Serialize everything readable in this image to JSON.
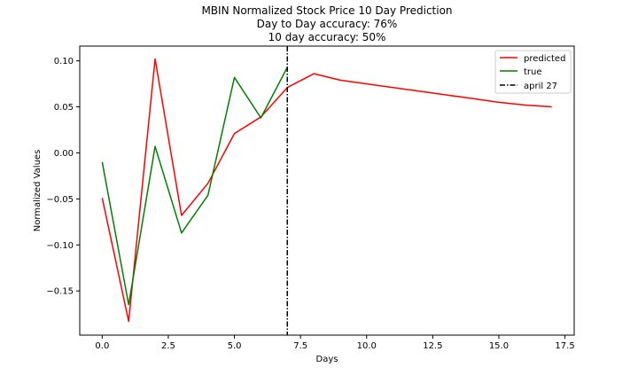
{
  "chart_data": {
    "type": "line",
    "title": "MBIN Normalized Stock Price 10 Day Prediction",
    "subtitle_lines": [
      "Day to Day accuracy: 76%",
      "10 day accuracy: 50%"
    ],
    "xlabel": "Days",
    "ylabel": "Normalized Values",
    "xlim": [
      -0.85,
      17.85
    ],
    "ylim": [
      -0.198,
      0.116
    ],
    "xticks": [
      0,
      2.5,
      5,
      7.5,
      10,
      12.5,
      15,
      17.5
    ],
    "xtick_labels": [
      "0.0",
      "2.5",
      "5.0",
      "7.5",
      "10.0",
      "12.5",
      "15.0",
      "17.5"
    ],
    "yticks": [
      0.1,
      0.05,
      0.0,
      -0.05,
      -0.1,
      -0.15
    ],
    "ytick_labels": [
      "0.10",
      "0.05",
      "0.00",
      "−0.05",
      "−0.10",
      "−0.15"
    ],
    "grid": false,
    "legend_position": "top-right",
    "series": [
      {
        "name": "predicted",
        "color": "#ff0000",
        "style": "solid",
        "x": [
          0,
          1,
          2,
          3,
          4,
          5,
          6,
          7,
          8,
          9,
          10,
          11,
          12,
          13,
          14,
          15,
          16,
          17
        ],
        "y": [
          -0.049,
          -0.183,
          0.102,
          -0.068,
          -0.033,
          0.021,
          0.039,
          0.071,
          0.086,
          0.079,
          0.075,
          0.071,
          0.067,
          0.063,
          0.059,
          0.055,
          0.052,
          0.05
        ]
      },
      {
        "name": "true",
        "color": "#008000",
        "style": "solid",
        "x": [
          0,
          1,
          2,
          3,
          4,
          5,
          6,
          7
        ],
        "y": [
          -0.01,
          -0.165,
          0.007,
          -0.087,
          -0.046,
          0.082,
          0.038,
          0.093
        ]
      }
    ],
    "vlines": [
      {
        "name": "april 27",
        "x": 7,
        "color": "#000000",
        "style": "dashdot"
      }
    ]
  }
}
